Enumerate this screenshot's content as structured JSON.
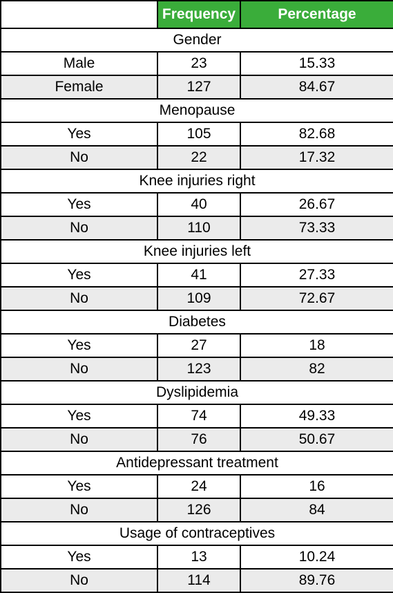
{
  "header": {
    "col_blank": "",
    "col_frequency": "Frequency",
    "col_percentage": "Percentage"
  },
  "colors": {
    "header_bg": "#3aad3a",
    "header_text": "#ffffff",
    "shaded_row_bg": "#ebebeb"
  },
  "sections": [
    {
      "title": "Gender",
      "rows": [
        {
          "label": "Male",
          "frequency": "23",
          "percentage": "15.33"
        },
        {
          "label": "Female",
          "frequency": "127",
          "percentage": "84.67"
        }
      ]
    },
    {
      "title": "Menopause",
      "rows": [
        {
          "label": "Yes",
          "frequency": "105",
          "percentage": "82.68"
        },
        {
          "label": "No",
          "frequency": "22",
          "percentage": "17.32"
        }
      ]
    },
    {
      "title": "Knee injuries right",
      "rows": [
        {
          "label": "Yes",
          "frequency": "40",
          "percentage": "26.67"
        },
        {
          "label": "No",
          "frequency": "110",
          "percentage": "73.33"
        }
      ]
    },
    {
      "title": "Knee injuries left",
      "rows": [
        {
          "label": "Yes",
          "frequency": "41",
          "percentage": "27.33"
        },
        {
          "label": "No",
          "frequency": "109",
          "percentage": "72.67"
        }
      ]
    },
    {
      "title": "Diabetes",
      "rows": [
        {
          "label": "Yes",
          "frequency": "27",
          "percentage": "18"
        },
        {
          "label": "No",
          "frequency": "123",
          "percentage": "82"
        }
      ]
    },
    {
      "title": "Dyslipidemia",
      "rows": [
        {
          "label": "Yes",
          "frequency": "74",
          "percentage": "49.33"
        },
        {
          "label": "No",
          "frequency": "76",
          "percentage": "50.67"
        }
      ]
    },
    {
      "title": "Antidepressant treatment",
      "rows": [
        {
          "label": "Yes",
          "frequency": "24",
          "percentage": "16"
        },
        {
          "label": "No",
          "frequency": "126",
          "percentage": "84"
        }
      ]
    },
    {
      "title": "Usage of contraceptives",
      "rows": [
        {
          "label": "Yes",
          "frequency": "13",
          "percentage": "10.24"
        },
        {
          "label": "No",
          "frequency": "114",
          "percentage": "89.76"
        }
      ]
    }
  ]
}
